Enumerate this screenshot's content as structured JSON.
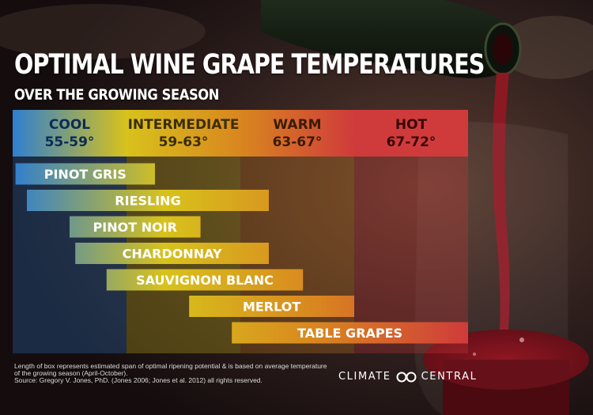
{
  "title": "OPTIMAL WINE GRAPE TEMPERATURES",
  "subtitle": "OVER THE GROWING SEASON",
  "chart_data": {
    "type": "bar",
    "orientation": "horizontal-range",
    "x_unit": "°F",
    "xlim": [
      55,
      72
    ],
    "zones": [
      {
        "name": "COOL",
        "range_label": "55-59°",
        "min": 55,
        "max": 59,
        "color": "#2f7fd0",
        "text_color": "#0d2b55"
      },
      {
        "name": "INTERMEDIATE",
        "range_label": "59-63°",
        "min": 59,
        "max": 63,
        "color": "#d8c21c",
        "text_color": "#3a2e06"
      },
      {
        "name": "WARM",
        "range_label": "63-67°",
        "min": 63,
        "max": 67,
        "color": "#d9861f",
        "text_color": "#3b1b04"
      },
      {
        "name": "HOT",
        "range_label": "67-72°",
        "min": 67,
        "max": 72,
        "color": "#cf3b3b",
        "text_color": "#3a0707"
      }
    ],
    "bars": [
      {
        "label": "PINOT GRIS",
        "start": 55.1,
        "end": 60.0
      },
      {
        "label": "RIESLING",
        "start": 55.5,
        "end": 64.0
      },
      {
        "label": "PINOT NOIR",
        "start": 57.0,
        "end": 61.6
      },
      {
        "label": "CHARDONNAY",
        "start": 57.2,
        "end": 64.0
      },
      {
        "label": "SAUVIGNON BLANC",
        "start": 58.3,
        "end": 65.2
      },
      {
        "label": "MERLOT",
        "start": 61.2,
        "end": 67.0
      },
      {
        "label": "TABLE GRAPES",
        "start": 62.7,
        "end": 72.0
      }
    ]
  },
  "footnote": {
    "line1": "Length of box represents estimated span of optimal ripening potential & is based on average temperature",
    "line2": "of the growing season (April-October).",
    "line3": "Source: Gregory V. Jones, PhD. (Jones 2006; Jones et al. 2012) all rights reserved."
  },
  "logo": {
    "left": "CLIMATE",
    "right": "CENTRAL"
  }
}
